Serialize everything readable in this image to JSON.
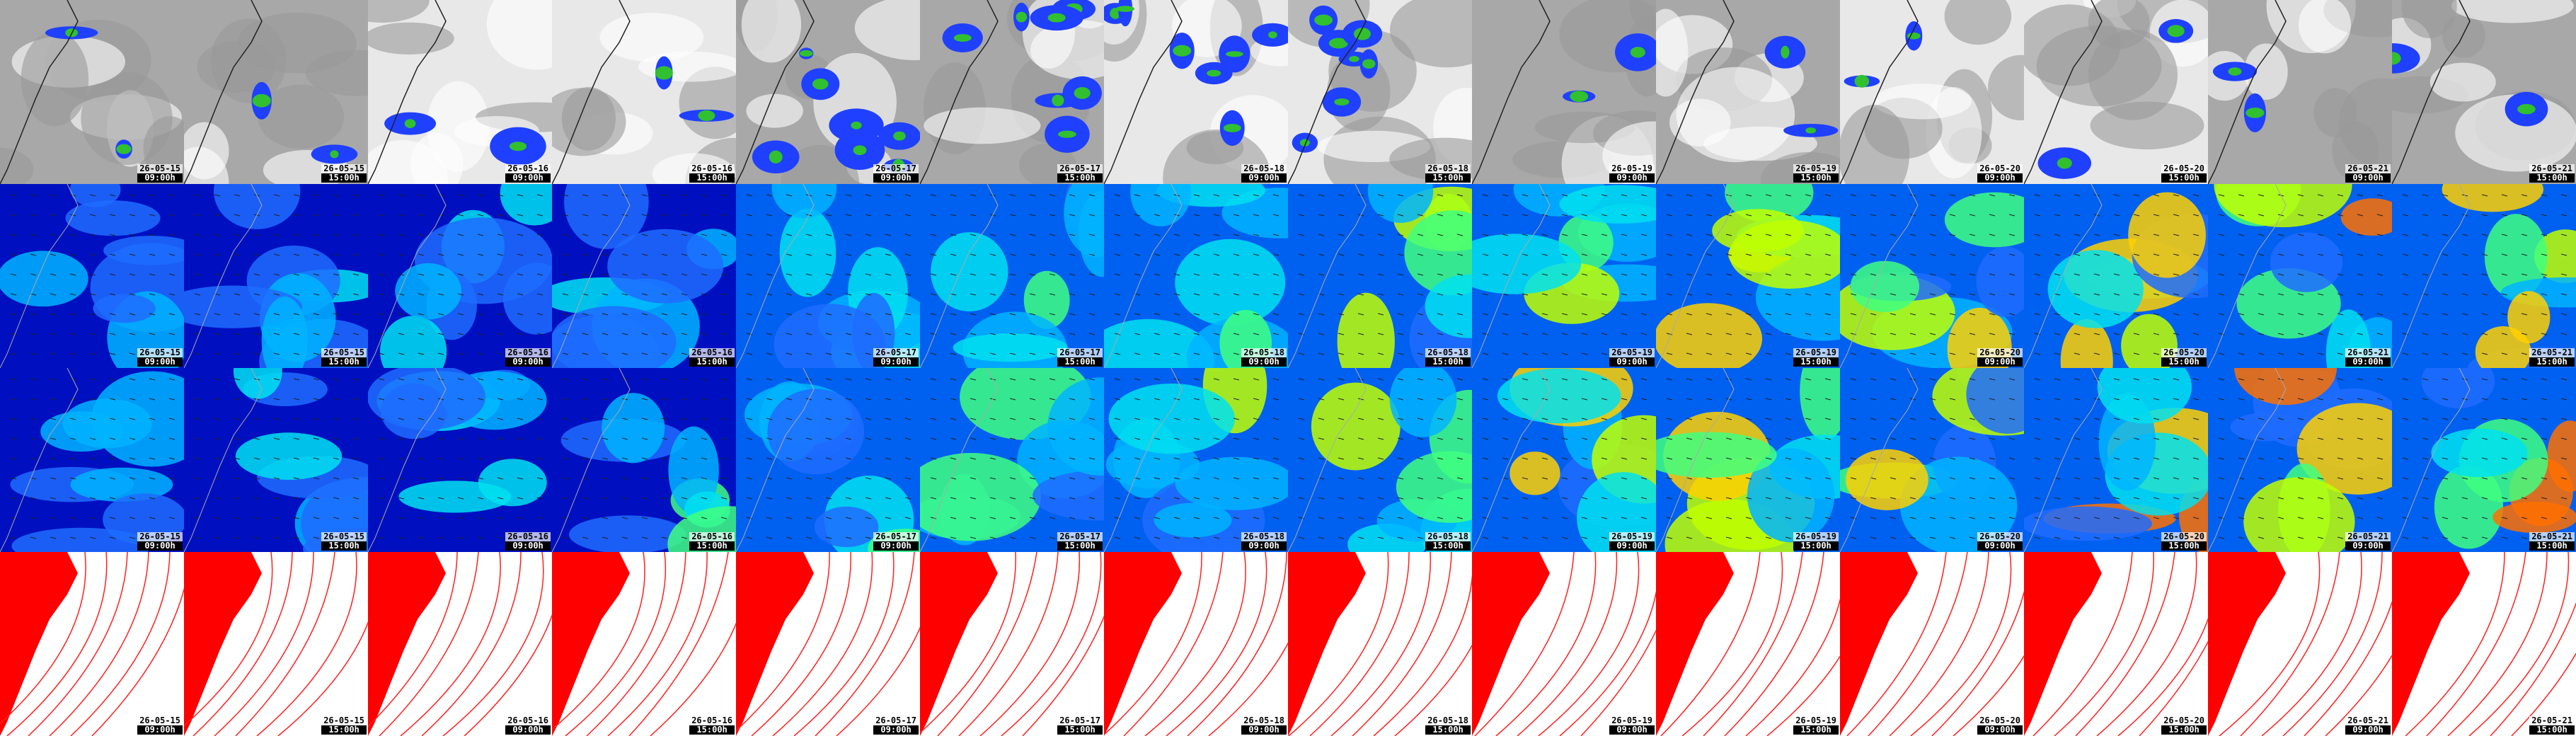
{
  "rows": [
    {
      "cells": [
        {
          "date": "26-05-15",
          "time": "09:00h"
        },
        {
          "date": "26-05-15",
          "time": "15:00h"
        },
        {
          "date": "26-05-16",
          "time": "09:00h"
        },
        {
          "date": "26-05-16",
          "time": "15:00h"
        },
        {
          "date": "26-05-17",
          "time": "09:00h"
        },
        {
          "date": "26-05-17",
          "time": "15:00h"
        },
        {
          "date": "26-05-18",
          "time": "09:00h"
        },
        {
          "date": "26-05-18",
          "time": "15:00h"
        },
        {
          "date": "26-05-19",
          "time": "09:00h"
        },
        {
          "date": "26-05-19",
          "time": "15:00h"
        },
        {
          "date": "26-05-20",
          "time": "09:00h"
        },
        {
          "date": "26-05-20",
          "time": "15:00h"
        },
        {
          "date": "26-05-21",
          "time": "09:00h"
        },
        {
          "date": "26-05-21",
          "time": "15:00h"
        }
      ]
    },
    {
      "cells": [
        {
          "date": "26-05-15",
          "time": "09:00h"
        },
        {
          "date": "26-05-15",
          "time": "15:00h"
        },
        {
          "date": "26-05-16",
          "time": "09:00h"
        },
        {
          "date": "26-05-16",
          "time": "15:00h"
        },
        {
          "date": "26-05-17",
          "time": "09:00h"
        },
        {
          "date": "26-05-17",
          "time": "15:00h"
        },
        {
          "date": "26-05-18",
          "time": "09:00h"
        },
        {
          "date": "26-05-18",
          "time": "15:00h"
        },
        {
          "date": "26-05-19",
          "time": "09:00h"
        },
        {
          "date": "26-05-19",
          "time": "15:00h"
        },
        {
          "date": "26-05-20",
          "time": "09:00h"
        },
        {
          "date": "26-05-20",
          "time": "15:00h"
        },
        {
          "date": "26-05-21",
          "time": "09:00h"
        },
        {
          "date": "26-05-21",
          "time": "15:00h"
        }
      ]
    },
    {
      "cells": [
        {
          "date": "26-05-15",
          "time": "09:00h"
        },
        {
          "date": "26-05-15",
          "time": "15:00h"
        },
        {
          "date": "26-05-16",
          "time": "09:00h"
        },
        {
          "date": "26-05-16",
          "time": "15:00h"
        },
        {
          "date": "26-05-17",
          "time": "09:00h"
        },
        {
          "date": "26-05-17",
          "time": "15:00h"
        },
        {
          "date": "26-05-18",
          "time": "09:00h"
        },
        {
          "date": "26-05-18",
          "time": "15:00h"
        },
        {
          "date": "26-05-19",
          "time": "09:00h"
        },
        {
          "date": "26-05-19",
          "time": "15:00h"
        },
        {
          "date": "26-05-20",
          "time": "09:00h"
        },
        {
          "date": "26-05-20",
          "time": "15:00h"
        },
        {
          "date": "26-05-21",
          "time": "09:00h"
        },
        {
          "date": "26-05-21",
          "time": "15:00h"
        }
      ]
    },
    {
      "cells": [
        {
          "date": "26-05-15",
          "time": "09:00h"
        },
        {
          "date": "26-05-15",
          "time": "15:00h"
        },
        {
          "date": "26-05-16",
          "time": "09:00h"
        },
        {
          "date": "26-05-16",
          "time": "15:00h"
        },
        {
          "date": "26-05-17",
          "time": "09:00h"
        },
        {
          "date": "26-05-17",
          "time": "15:00h"
        },
        {
          "date": "26-05-18",
          "time": "09:00h"
        },
        {
          "date": "26-05-18",
          "time": "15:00h"
        },
        {
          "date": "26-05-19",
          "time": "09:00h"
        },
        {
          "date": "26-05-19",
          "time": "15:00h"
        },
        {
          "date": "26-05-20",
          "time": "09:00h"
        },
        {
          "date": "26-05-20",
          "time": "15:00h"
        },
        {
          "date": "26-05-21",
          "time": "09:00h"
        },
        {
          "date": "26-05-21",
          "time": "15:00h"
        }
      ]
    }
  ]
}
